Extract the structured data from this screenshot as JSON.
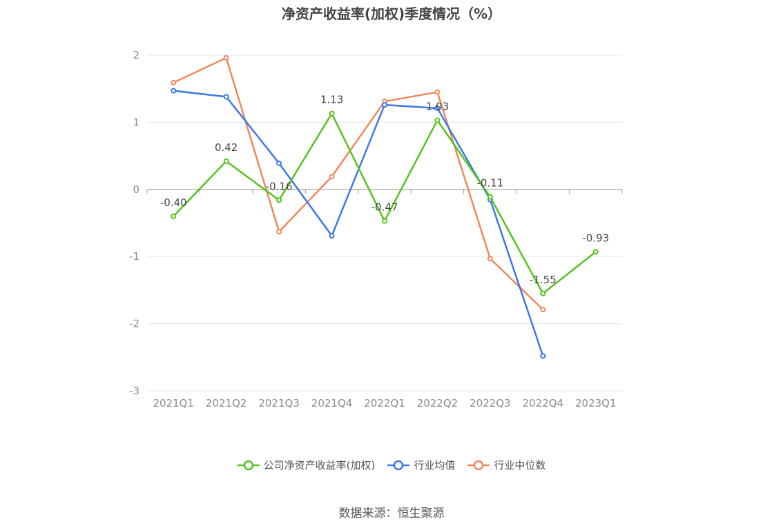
{
  "chart_data": {
    "type": "line",
    "title": "净资产收益率(加权)季度情况（%）",
    "categories": [
      "2021Q1",
      "2021Q2",
      "2021Q3",
      "2021Q4",
      "2022Q1",
      "2022Q2",
      "2022Q3",
      "2022Q4",
      "2023Q1"
    ],
    "ylim": [
      -3,
      2
    ],
    "yticks": [
      2,
      1,
      0,
      -1,
      -2,
      -3
    ],
    "grid": true,
    "legend_position": "bottom",
    "series": [
      {
        "name": "公司净资产收益率(加权)",
        "color": "#52c41a",
        "values": [
          -0.4,
          0.42,
          -0.16,
          1.13,
          -0.47,
          1.03,
          -0.11,
          -1.55,
          -0.93
        ],
        "labels": [
          "-0.40",
          "0.42",
          "-0.16",
          "1.13",
          "-0.47",
          "1.03",
          "-0.11",
          "-1.55",
          "-0.93"
        ]
      },
      {
        "name": "行业均值",
        "color": "#3b78e7",
        "values": [
          1.47,
          1.38,
          0.39,
          -0.69,
          1.26,
          1.21,
          -0.15,
          -2.48,
          null
        ]
      },
      {
        "name": "行业中位数",
        "color": "#f0875a",
        "values": [
          1.59,
          1.96,
          -0.63,
          0.19,
          1.31,
          1.45,
          -1.03,
          -1.79,
          null
        ]
      }
    ]
  },
  "source": "数据来源：恒生聚源"
}
